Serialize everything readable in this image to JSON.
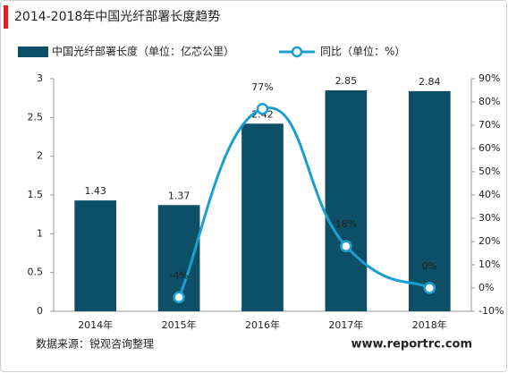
{
  "chart_data": {
    "type": "bar-line",
    "title": "2014-2018年中国光纤部署长度趋势",
    "categories": [
      "2014年",
      "2015年",
      "2016年",
      "2017年",
      "2018年"
    ],
    "series": [
      {
        "name": "中国光纤部署长度（单位：亿芯公里）",
        "color": "#0c4f66",
        "type": "bar",
        "values": [
          1.43,
          1.37,
          2.42,
          2.85,
          2.84
        ]
      },
      {
        "name": "同比（单位：%）",
        "color": "#1b9fd1",
        "type": "line",
        "axis": "y2",
        "values": [
          null,
          -4,
          77,
          18,
          0
        ],
        "value_labels": [
          null,
          "-4%",
          "77%",
          "18%",
          "0%"
        ]
      }
    ],
    "ylim": [
      0,
      3
    ],
    "yticks": [
      0,
      0.5,
      1,
      1.5,
      2,
      2.5,
      3
    ],
    "y2lim": [
      -10,
      90
    ],
    "y2ticks": [
      {
        "value": -10,
        "label": "-10%"
      },
      {
        "value": 0,
        "label": "0%"
      },
      {
        "value": 10,
        "label": "10%"
      },
      {
        "value": 20,
        "label": "20%"
      },
      {
        "value": 30,
        "label": "30%"
      },
      {
        "value": 40,
        "label": "40%"
      },
      {
        "value": 50,
        "label": "50%"
      },
      {
        "value": 60,
        "label": "60%"
      },
      {
        "value": 70,
        "label": "70%"
      },
      {
        "value": 80,
        "label": "80%"
      },
      {
        "value": 90,
        "label": "90%"
      }
    ],
    "source": "数据来源：锐观咨询整理",
    "website": "www.reportrc.com"
  }
}
